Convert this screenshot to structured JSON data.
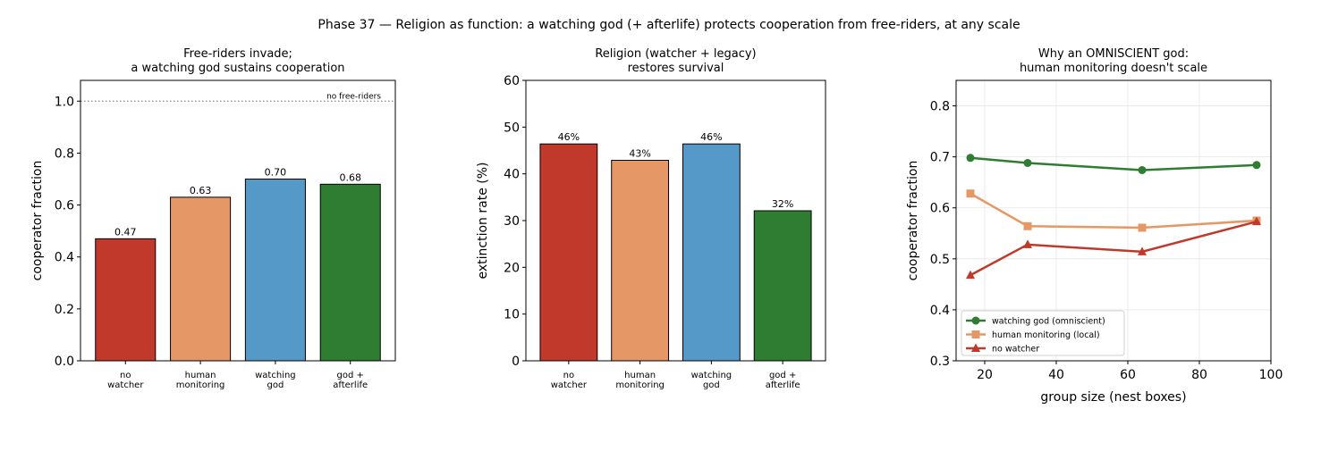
{
  "figure": {
    "suptitle": "Phase 37 — Religion as function: a watching god (+ afterlife) protects cooperation from free-riders, at any scale",
    "colors": {
      "red": "#c0392b",
      "orange": "#e59866",
      "blue": "#5499c7",
      "green": "#2e7d32"
    }
  },
  "chart_data": [
    {
      "type": "bar",
      "title_lines": [
        "Free-riders invade;",
        "a watching god sustains cooperation"
      ],
      "categories": [
        [
          "no",
          "watcher"
        ],
        [
          "human",
          "monitoring"
        ],
        [
          "watching",
          "god"
        ],
        [
          "god +",
          "afterlife"
        ]
      ],
      "values": [
        0.47,
        0.63,
        0.7,
        0.68
      ],
      "data_labels": [
        "0.47",
        "0.63",
        "0.70",
        "0.68"
      ],
      "bar_colors": [
        "#c0392b",
        "#e59866",
        "#5499c7",
        "#2e7d32"
      ],
      "xlabel": "",
      "ylabel": "cooperator fraction",
      "ylim": [
        0,
        1.08
      ],
      "yticks": [
        0.0,
        0.2,
        0.4,
        0.6,
        0.8,
        1.0
      ],
      "ytick_labels": [
        "0.0",
        "0.2",
        "0.4",
        "0.6",
        "0.8",
        "1.0"
      ],
      "reference_line": {
        "y": 1.0,
        "label": "no free-riders",
        "style": "dotted"
      },
      "grid": false
    },
    {
      "type": "bar",
      "title_lines": [
        "Religion (watcher + legacy)",
        "restores survival"
      ],
      "categories": [
        [
          "no",
          "watcher"
        ],
        [
          "human",
          "monitoring"
        ],
        [
          "watching",
          "god"
        ],
        [
          "god +",
          "afterlife"
        ]
      ],
      "values": [
        46.4,
        42.9,
        46.4,
        32.1
      ],
      "data_labels": [
        "46%",
        "43%",
        "46%",
        "32%"
      ],
      "bar_colors": [
        "#c0392b",
        "#e59866",
        "#5499c7",
        "#2e7d32"
      ],
      "xlabel": "",
      "ylabel": "extinction rate (%)",
      "ylim": [
        0,
        60
      ],
      "yticks": [
        0,
        10,
        20,
        30,
        40,
        50,
        60
      ],
      "ytick_labels": [
        "0",
        "10",
        "20",
        "30",
        "40",
        "50",
        "60"
      ],
      "grid": false
    },
    {
      "type": "line",
      "title_lines": [
        "Why an OMNISCIENT god:",
        "human monitoring doesn't scale"
      ],
      "xlabel": "group size (nest boxes)",
      "ylabel": "cooperator fraction",
      "xlim": [
        12,
        100
      ],
      "ylim": [
        0.3,
        0.85
      ],
      "xticks": [
        20,
        40,
        60,
        80,
        100
      ],
      "xtick_labels": [
        "20",
        "40",
        "60",
        "80",
        "100"
      ],
      "yticks": [
        0.3,
        0.4,
        0.5,
        0.6,
        0.7,
        0.8
      ],
      "ytick_labels": [
        "0.3",
        "0.4",
        "0.5",
        "0.6",
        "0.7",
        "0.8"
      ],
      "grid": true,
      "legend_position": "lower-left",
      "series": [
        {
          "name": "watching god (omniscient)",
          "color": "#2e7d32",
          "marker": "circle",
          "x": [
            16,
            32,
            64,
            96
          ],
          "y": [
            0.698,
            0.688,
            0.674,
            0.684
          ]
        },
        {
          "name": "human monitoring (local)",
          "color": "#e59866",
          "marker": "square",
          "x": [
            16,
            32,
            64,
            96
          ],
          "y": [
            0.628,
            0.564,
            0.561,
            0.575
          ]
        },
        {
          "name": "no watcher",
          "color": "#c0392b",
          "marker": "triangle",
          "x": [
            16,
            32,
            64,
            96
          ],
          "y": [
            0.468,
            0.528,
            0.514,
            0.573
          ]
        }
      ]
    }
  ]
}
